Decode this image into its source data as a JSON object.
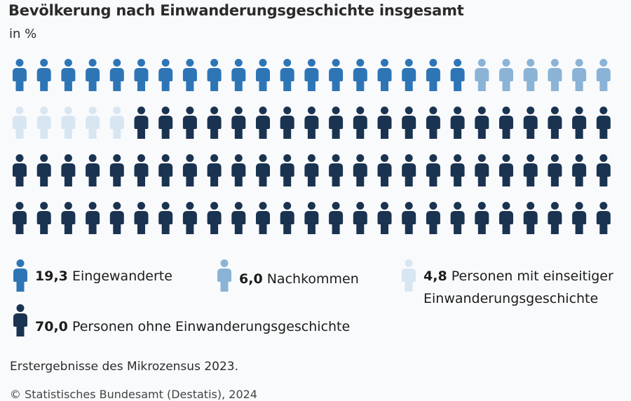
{
  "title": "Bevölkerung nach Einwanderungsgeschichte insgesamt",
  "subtitle": "in %",
  "chart_data": {
    "type": "pictogram",
    "total_icons": 100,
    "units": "%",
    "series": [
      {
        "name": "Eingewanderte",
        "value": 19.3,
        "value_label": "19,3",
        "color": "#2e75b6",
        "icons": 19
      },
      {
        "name": "Nachkommen",
        "value": 6.0,
        "value_label": "6,0",
        "color": "#8ab3d6",
        "icons": 6
      },
      {
        "name": "Personen mit einseitiger Einwanderungsgeschichte",
        "value": 4.8,
        "value_label": "4,8",
        "color": "#d8e6f2",
        "icons": 5
      },
      {
        "name": "Personen ohne Einwanderungsgeschichte",
        "value": 70.0,
        "value_label": "70,0",
        "color": "#1a3350",
        "icons": 70
      }
    ]
  },
  "note": "Erstergebnisse des Mikrozensus 2023.",
  "source": "© Statistisches Bundesamt (Destatis), 2024"
}
